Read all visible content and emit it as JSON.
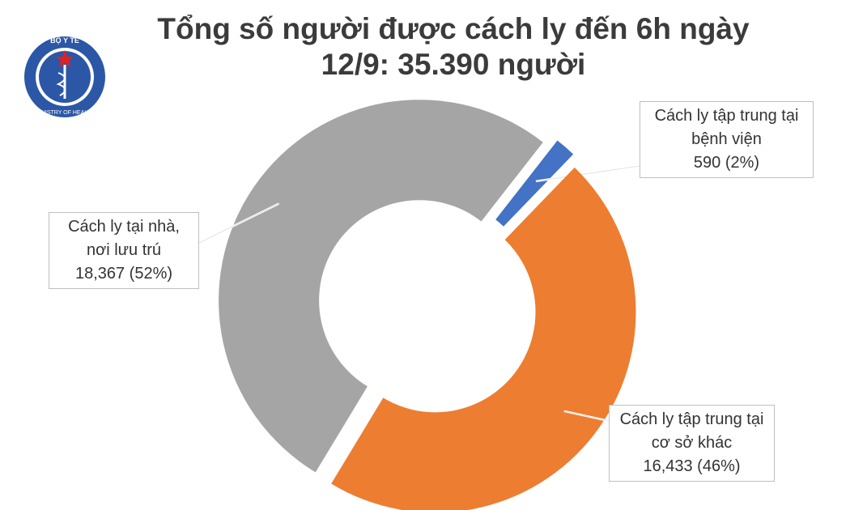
{
  "logo": {
    "top": "BỘ Y TẾ",
    "bottom": "MINISTRY OF HEALTH"
  },
  "chart_data": {
    "type": "donut",
    "title": "Tổng số người được cách ly đến 6h ngày 12/9: 35.390 người",
    "categories": [
      "Cách ly tập trung tại bệnh viện",
      "Cách ly tập trung tại cơ sở khác",
      "Cách ly tại nhà, nơi lưu trú"
    ],
    "values": [
      590,
      16433,
      18367
    ],
    "value_labels": [
      "590 (2%)",
      "16,433 (46%)",
      "18,367 (52%)"
    ],
    "colors": [
      "#4472c4",
      "#ed7d31",
      "#a5a5a5"
    ]
  }
}
